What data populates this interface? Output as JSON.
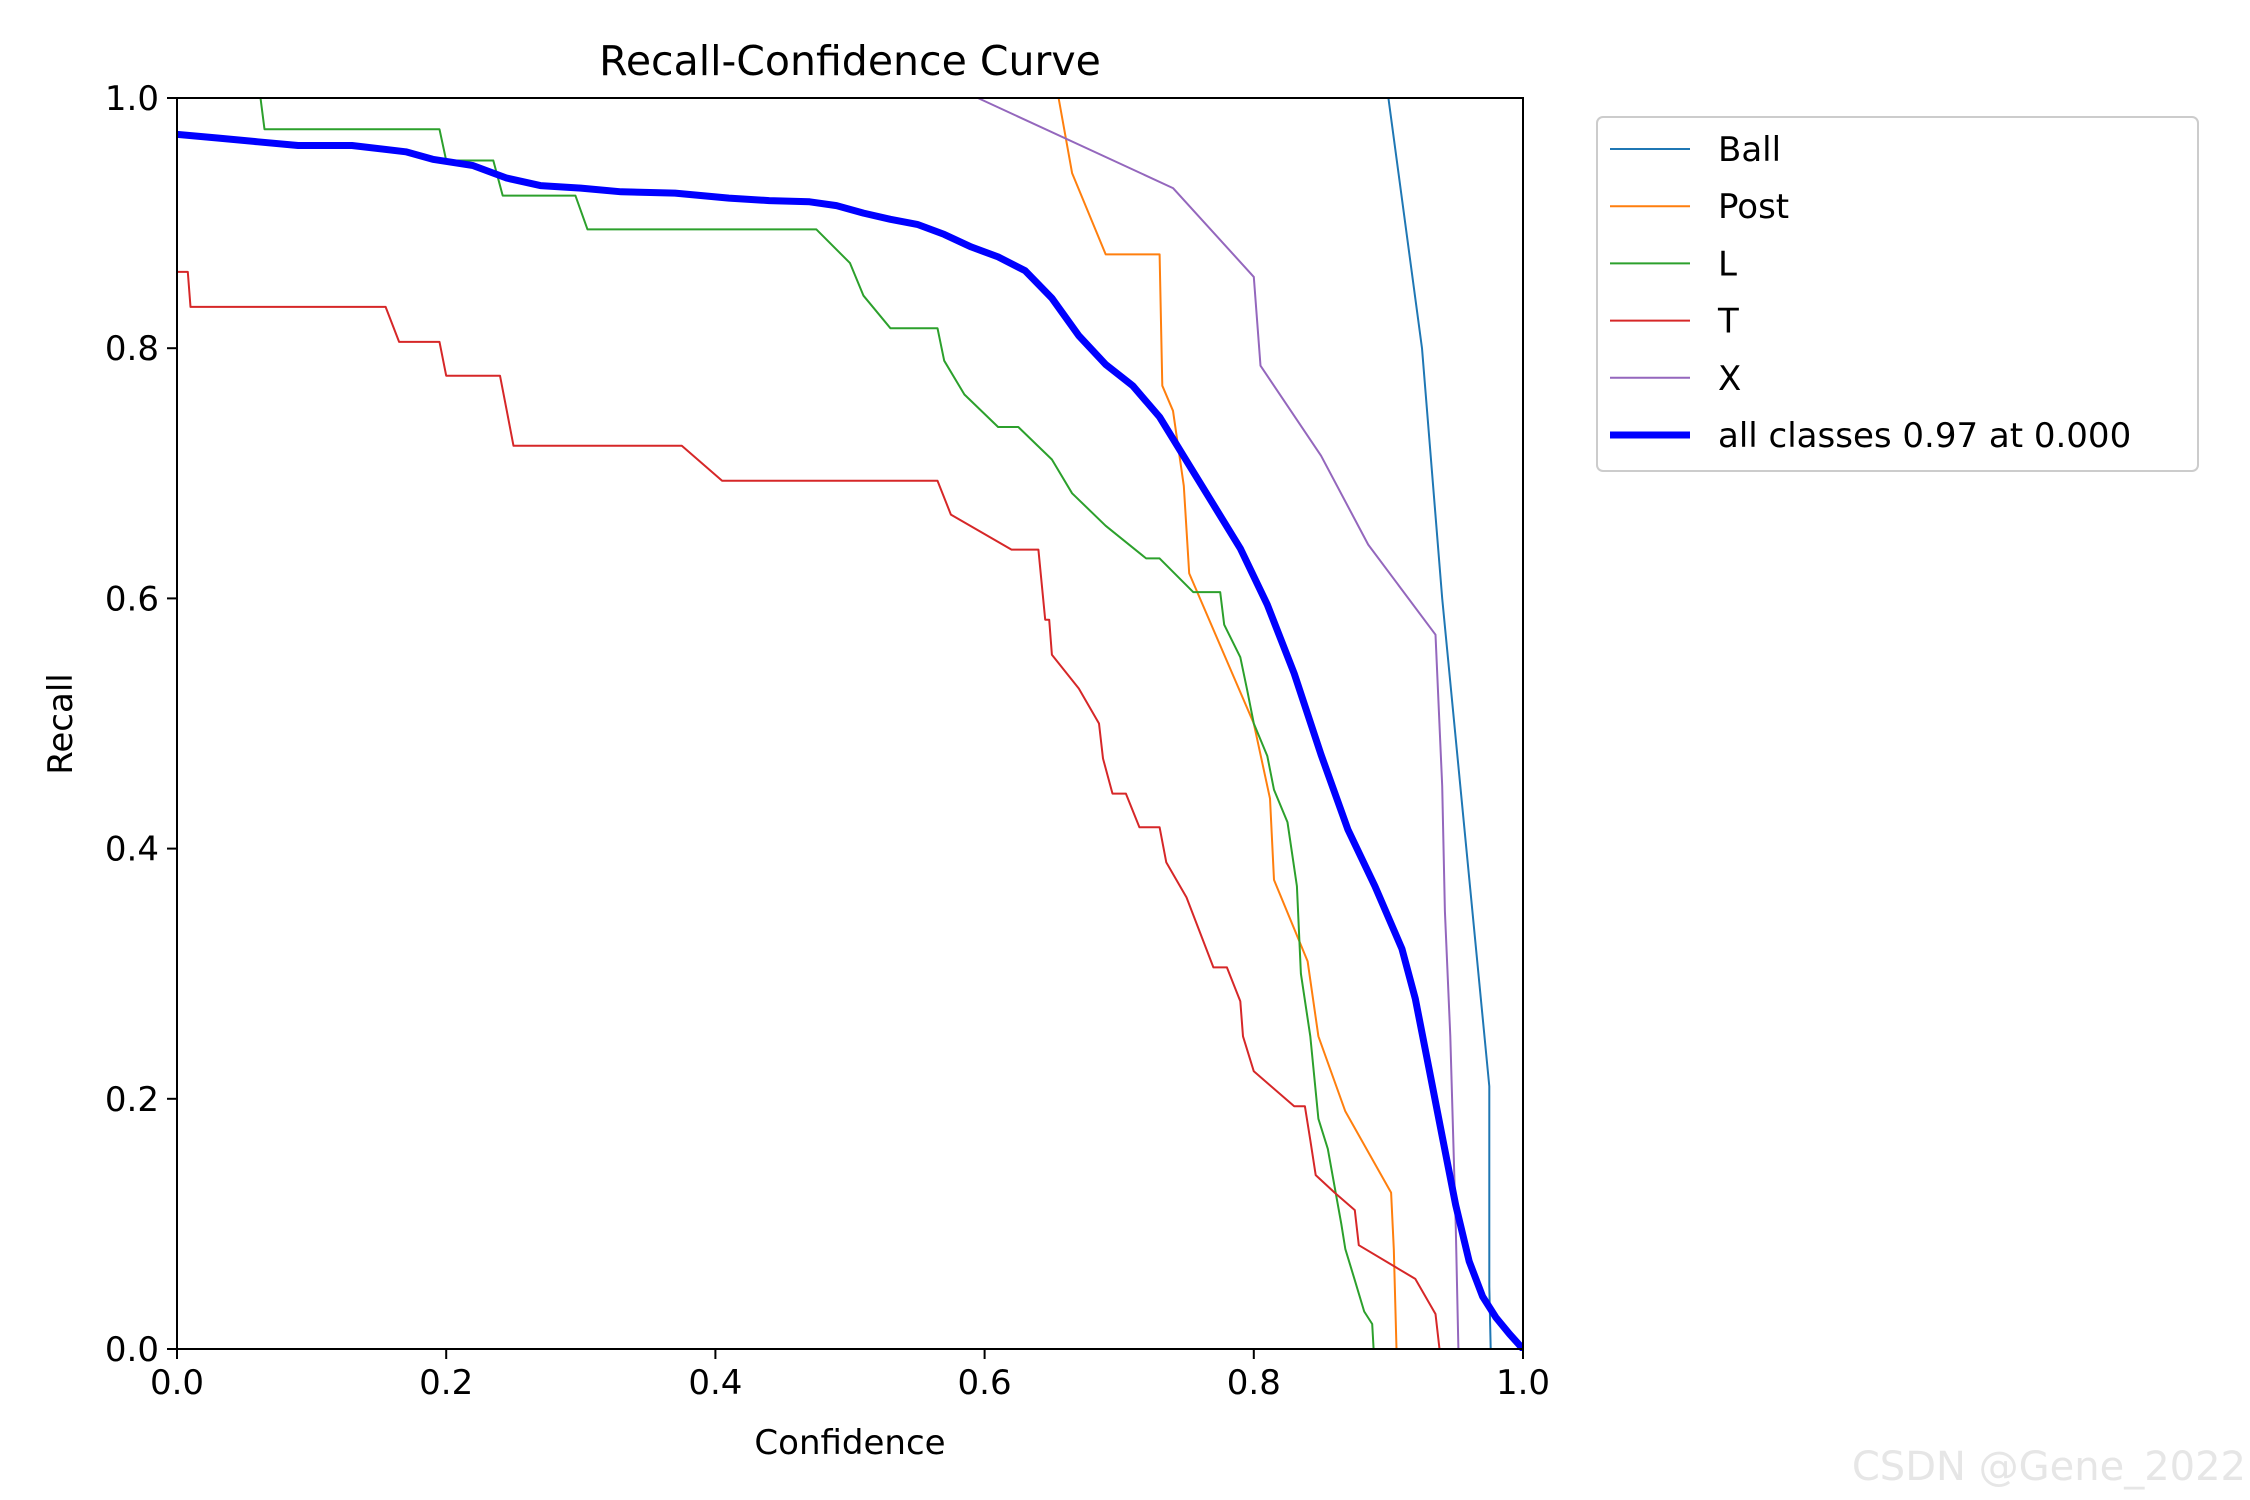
{
  "chart_data": {
    "type": "line",
    "title": "Recall-Confidence Curve",
    "xlabel": "Confidence",
    "ylabel": "Recall",
    "xlim": [
      0,
      1
    ],
    "ylim": [
      0,
      1
    ],
    "xticks": [
      "0.0",
      "0.2",
      "0.4",
      "0.6",
      "0.8",
      "1.0"
    ],
    "yticks": [
      "0.0",
      "0.2",
      "0.4",
      "0.6",
      "0.8",
      "1.0"
    ],
    "grid": false,
    "legend_position": "outside-right-top",
    "series": [
      {
        "name": "Ball",
        "color": "#1f77b4",
        "width": 2,
        "x": [
          0.9,
          0.925,
          0.94,
          0.975,
          0.975,
          0.976,
          1.0
        ],
        "y": [
          1.0,
          0.8,
          0.6,
          0.21,
          0.05,
          0.0,
          0.0
        ]
      },
      {
        "name": "Post",
        "color": "#ff7f0e",
        "width": 2,
        "x": [
          0.655,
          0.665,
          0.69,
          0.73,
          0.732,
          0.74,
          0.748,
          0.752,
          0.8,
          0.812,
          0.815,
          0.84,
          0.848,
          0.868,
          0.902,
          0.904,
          0.906,
          1.0
        ],
        "y": [
          1.0,
          0.94,
          0.875,
          0.875,
          0.77,
          0.75,
          0.69,
          0.62,
          0.5,
          0.44,
          0.375,
          0.31,
          0.25,
          0.19,
          0.125,
          0.08,
          0.0,
          0.0
        ]
      },
      {
        "name": "L",
        "color": "#2ca02c",
        "width": 2,
        "x": [
          0.0,
          0.062,
          0.065,
          0.195,
          0.2,
          0.235,
          0.242,
          0.296,
          0.305,
          0.475,
          0.5,
          0.51,
          0.53,
          0.565,
          0.57,
          0.585,
          0.61,
          0.625,
          0.65,
          0.665,
          0.69,
          0.72,
          0.73,
          0.755,
          0.775,
          0.778,
          0.79,
          0.795,
          0.8,
          0.81,
          0.815,
          0.825,
          0.832,
          0.835,
          0.842,
          0.848,
          0.855,
          0.865,
          0.868,
          0.875,
          0.882,
          0.888,
          0.889,
          1.0
        ],
        "y": [
          1.0,
          1.0,
          0.975,
          0.975,
          0.95,
          0.95,
          0.922,
          0.922,
          0.895,
          0.895,
          0.868,
          0.842,
          0.816,
          0.816,
          0.79,
          0.763,
          0.737,
          0.737,
          0.711,
          0.684,
          0.658,
          0.632,
          0.632,
          0.605,
          0.605,
          0.579,
          0.553,
          0.527,
          0.5,
          0.474,
          0.447,
          0.421,
          0.37,
          0.3,
          0.25,
          0.184,
          0.16,
          0.1,
          0.08,
          0.055,
          0.03,
          0.02,
          0.0,
          0.0
        ]
      },
      {
        "name": "T",
        "color": "#d62728",
        "width": 2,
        "x": [
          0.0,
          0.008,
          0.01,
          0.155,
          0.165,
          0.195,
          0.2,
          0.24,
          0.245,
          0.25,
          0.375,
          0.405,
          0.565,
          0.575,
          0.62,
          0.64,
          0.645,
          0.648,
          0.65,
          0.67,
          0.685,
          0.688,
          0.695,
          0.705,
          0.715,
          0.73,
          0.735,
          0.75,
          0.77,
          0.78,
          0.79,
          0.792,
          0.8,
          0.83,
          0.838,
          0.842,
          0.846,
          0.86,
          0.875,
          0.878,
          0.92,
          0.935,
          0.938,
          1.0
        ],
        "y": [
          0.861,
          0.861,
          0.833,
          0.833,
          0.805,
          0.805,
          0.778,
          0.778,
          0.75,
          0.722,
          0.722,
          0.694,
          0.694,
          0.667,
          0.639,
          0.639,
          0.583,
          0.583,
          0.555,
          0.528,
          0.5,
          0.472,
          0.444,
          0.444,
          0.417,
          0.417,
          0.389,
          0.361,
          0.305,
          0.305,
          0.278,
          0.25,
          0.222,
          0.194,
          0.194,
          0.167,
          0.139,
          0.125,
          0.111,
          0.083,
          0.056,
          0.028,
          0.0,
          0.0
        ]
      },
      {
        "name": "X",
        "color": "#9467bd",
        "width": 2,
        "x": [
          0.595,
          0.74,
          0.8,
          0.805,
          0.85,
          0.885,
          0.935,
          0.94,
          0.942,
          0.946,
          0.95,
          0.952,
          1.0
        ],
        "y": [
          1.0,
          0.928,
          0.857,
          0.786,
          0.714,
          0.643,
          0.571,
          0.45,
          0.35,
          0.25,
          0.1,
          0.0,
          0.0
        ]
      },
      {
        "name": "all classes 0.97 at 0.000",
        "color": "#0000ff",
        "width": 7,
        "x": [
          0.0,
          0.03,
          0.06,
          0.09,
          0.13,
          0.17,
          0.19,
          0.22,
          0.245,
          0.27,
          0.3,
          0.33,
          0.37,
          0.41,
          0.44,
          0.47,
          0.49,
          0.51,
          0.53,
          0.55,
          0.57,
          0.59,
          0.61,
          0.63,
          0.65,
          0.67,
          0.69,
          0.71,
          0.73,
          0.75,
          0.77,
          0.79,
          0.81,
          0.83,
          0.85,
          0.87,
          0.89,
          0.91,
          0.92,
          0.93,
          0.94,
          0.95,
          0.96,
          0.97,
          0.98,
          0.99,
          1.0
        ],
        "y": [
          0.971,
          0.968,
          0.965,
          0.962,
          0.962,
          0.957,
          0.951,
          0.946,
          0.936,
          0.93,
          0.928,
          0.925,
          0.924,
          0.92,
          0.918,
          0.917,
          0.914,
          0.908,
          0.903,
          0.899,
          0.891,
          0.881,
          0.873,
          0.862,
          0.84,
          0.81,
          0.787,
          0.77,
          0.745,
          0.71,
          0.675,
          0.64,
          0.595,
          0.54,
          0.475,
          0.415,
          0.37,
          0.32,
          0.28,
          0.225,
          0.17,
          0.115,
          0.07,
          0.042,
          0.025,
          0.012,
          0.0
        ]
      }
    ]
  },
  "watermark": "CSDN @Gene_2022"
}
